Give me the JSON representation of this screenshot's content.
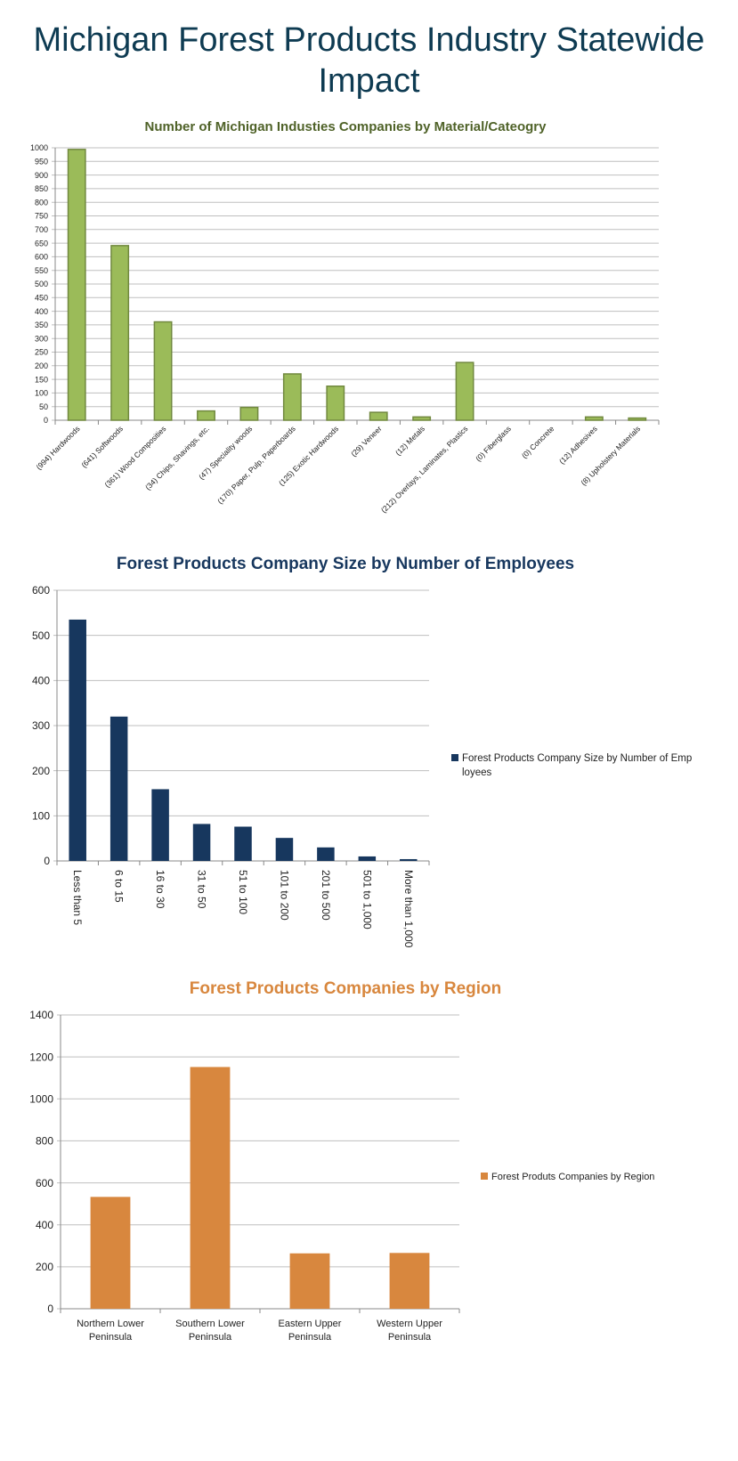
{
  "page_title": "Michigan Forest Products Industry Statewide Impact",
  "chart_data": [
    {
      "type": "bar",
      "title": "Number of Michigan Industies Companies by Material/Cateogry",
      "categories": [
        "(994) Hardwoods",
        "(641) Softwoods",
        "(361) Wood Composities",
        "(34) Chips, Shavings, etc.",
        "(47) Speciality woods",
        "(170) Paper, Pulp, Paperboards",
        "(125) Exotic Hardwoods",
        "(29) Veneer",
        "(12) Metals",
        "(212) Overlays, Laminates, Plastics",
        "(0) Fiberglass",
        "(0) Concrete",
        "(12) Adhesives",
        "(8) Upholstery Materials"
      ],
      "values": [
        994,
        641,
        361,
        34,
        47,
        170,
        125,
        29,
        12,
        212,
        0,
        0,
        12,
        8
      ],
      "yticks": [
        "0",
        "50",
        "100",
        "150",
        "200",
        "250",
        "300",
        "350",
        "400",
        "450",
        "500",
        "550",
        "600",
        "650",
        "700",
        "750",
        "800",
        "850",
        "900",
        "950",
        "1000"
      ],
      "ylim": [
        0,
        1000
      ],
      "grid": true,
      "legend": "none",
      "bar_color": "#9bbb59",
      "bar_stroke": "#71893f",
      "title_color": "#4f6228"
    },
    {
      "type": "bar",
      "title": "Forest Products Company Size by Number of Employees",
      "categories": [
        "Less than 5",
        "6 to 15",
        "16 to 30",
        "31 to 50",
        "51 to 100",
        "101 to 200",
        "201 to 500",
        "501 to 1,000",
        "More than 1,000"
      ],
      "series": [
        {
          "name": "Forest Products Company Size by Number of Employees",
          "values": [
            535,
            320,
            159,
            82,
            76,
            51,
            30,
            10,
            4
          ]
        }
      ],
      "yticks": [
        "0",
        "100",
        "200",
        "300",
        "400",
        "500",
        "600"
      ],
      "ylim": [
        0,
        600
      ],
      "grid": true,
      "legend": "right",
      "bar_color": "#17375e",
      "title_color": "#17375e"
    },
    {
      "type": "bar",
      "title": "Forest Products Companies by Region",
      "categories": [
        "Northern  Lower Peninsula",
        "Southern Lower Peninsula",
        "Eastern Upper Peninsula",
        "Western Upper Peninsula"
      ],
      "category_lines": [
        [
          "Northern  Lower",
          "Peninsula"
        ],
        [
          "Southern Lower",
          "Peninsula"
        ],
        [
          "Eastern Upper",
          "Peninsula"
        ],
        [
          "Western Upper",
          "Peninsula"
        ]
      ],
      "series": [
        {
          "name": "Forest Produts Companies by Region",
          "values": [
            533,
            1152,
            264,
            266
          ]
        }
      ],
      "yticks": [
        "0",
        "200",
        "400",
        "600",
        "800",
        "1000",
        "1200",
        "1400"
      ],
      "ylim": [
        0,
        1400
      ],
      "grid": true,
      "legend": "right",
      "bar_color": "#d8873e",
      "title_color": "#d8873e"
    }
  ]
}
